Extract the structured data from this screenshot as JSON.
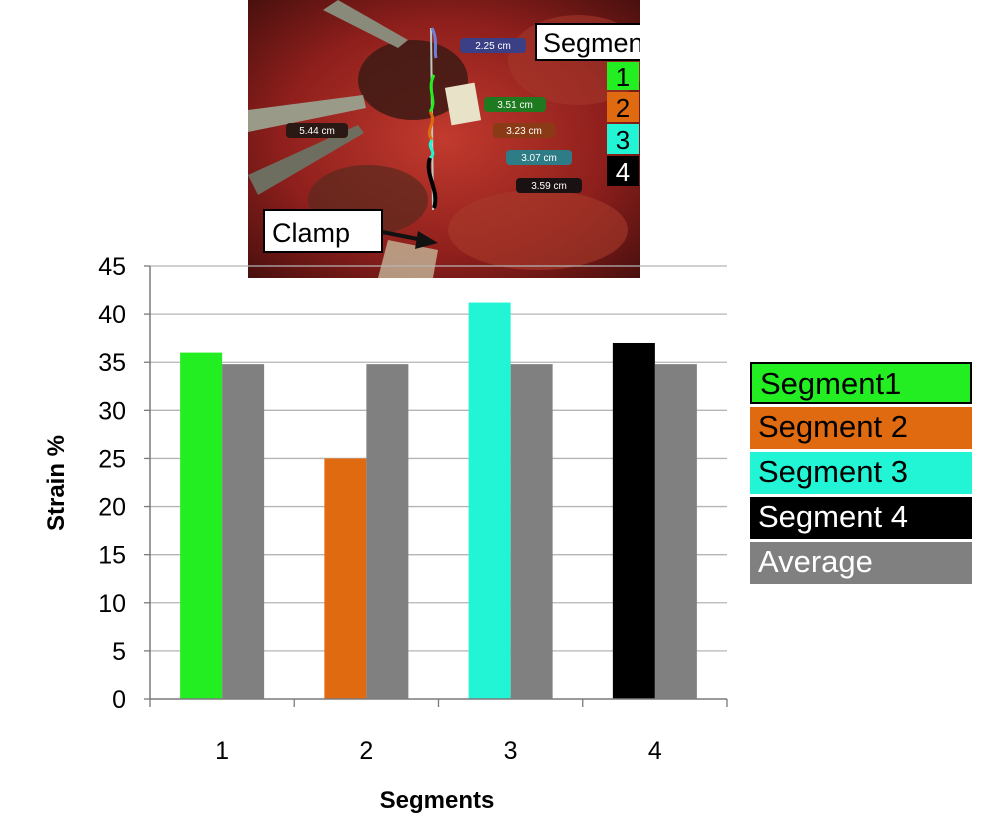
{
  "photo": {
    "segments_title": "Segments",
    "segment_numbers": [
      "1",
      "2",
      "3",
      "4"
    ],
    "clamp_label": "Clamp",
    "measurements": [
      "2.25 cm",
      "5.44 cm",
      "3.51 cm",
      "3.23 cm",
      "3.07 cm",
      "3.59 cm"
    ]
  },
  "colors": {
    "segment1": "#22ee22",
    "segment2": "#e06a10",
    "segment3": "#22f5d5",
    "segment4": "#000000",
    "average": "#808080"
  },
  "chart_data": {
    "type": "bar",
    "xlabel": "Segments",
    "ylabel": "Strain %",
    "categories": [
      "1",
      "2",
      "3",
      "4"
    ],
    "ylim": [
      0,
      45
    ],
    "yticks": [
      "0",
      "5",
      "10",
      "15",
      "20",
      "25",
      "30",
      "35",
      "40",
      "45"
    ],
    "grid": true,
    "legend_position": "right",
    "series": [
      {
        "name": "Segment",
        "values": [
          36,
          25,
          41.2,
          37
        ]
      },
      {
        "name": "Average",
        "values": [
          34.8,
          34.8,
          34.8,
          34.8
        ]
      }
    ],
    "legend": [
      "Segment1",
      "Segment 2",
      "Segment 3",
      "Segment 4",
      "Average"
    ]
  }
}
